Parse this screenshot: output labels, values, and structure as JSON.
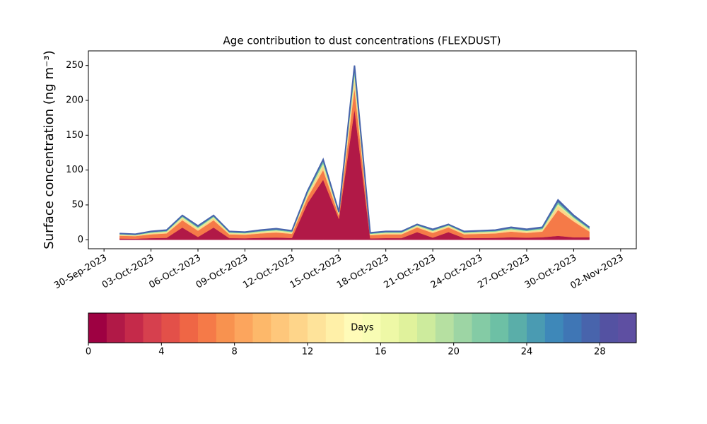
{
  "chart_data": [
    {
      "type": "stacked-area",
      "title": "Age contribution to dust concentrations (FLEXDUST)",
      "y_label": "Surface concentration (ng m⁻³)",
      "x": [
        "2023-10-01",
        "2023-10-02",
        "2023-10-03",
        "2023-10-04",
        "2023-10-05",
        "2023-10-06",
        "2023-10-07",
        "2023-10-08",
        "2023-10-09",
        "2023-10-10",
        "2023-10-11",
        "2023-10-12",
        "2023-10-13",
        "2023-10-14",
        "2023-10-15",
        "2023-10-16",
        "2023-10-17",
        "2023-10-18",
        "2023-10-19",
        "2023-10-20",
        "2023-10-21",
        "2023-10-22",
        "2023-10-23",
        "2023-10-24",
        "2023-10-25",
        "2023-10-26",
        "2023-10-27",
        "2023-10-28",
        "2023-10-29",
        "2023-10-30",
        "2023-10-31"
      ],
      "series": [
        {
          "color": "#b11947",
          "values": [
            1.8,
            1.6,
            2.4,
            2.8,
            17.5,
            4.0,
            17.5,
            2.4,
            2.2,
            2.8,
            3.2,
            2.6,
            52.5,
            86.3,
            30,
            187.5,
            2,
            2.4,
            2.4,
            11,
            3,
            11,
            2.4,
            2.6,
            2.8,
            3.6,
            3,
            3.6,
            5.7,
            3.5,
            3.6
          ]
        },
        {
          "color": "#f57a48",
          "values": [
            4.1,
            3.6,
            5.4,
            6.3,
            10.5,
            9.0,
            10.5,
            5.4,
            5.0,
            6.3,
            7.2,
            5.9,
            8.4,
            13.8,
            4.8,
            30,
            4.5,
            5.4,
            5.4,
            6.6,
            6.8,
            6.6,
            5.4,
            5.9,
            6.3,
            8.1,
            6.8,
            8.1,
            37.1,
            22.8,
            8.1
          ]
        },
        {
          "color": "#fed58a",
          "values": [
            1.1,
            1.0,
            1.4,
            1.7,
            2.8,
            2.4,
            2.8,
            1.4,
            1.3,
            1.7,
            1.9,
            1.6,
            3.5,
            5.8,
            2,
            12.5,
            1.2,
            1.4,
            1.4,
            1.8,
            1.8,
            1.8,
            1.4,
            1.6,
            1.7,
            2.2,
            1.8,
            2.2,
            5.7,
            3.5,
            2.2
          ]
        },
        {
          "color": "#e0f29c",
          "values": [
            0.7,
            0.6,
            1.0,
            1.1,
            1.8,
            1.6,
            1.8,
            1.0,
            0.9,
            1.1,
            1.3,
            1.0,
            2.1,
            3.5,
            1.2,
            7.5,
            0.8,
            1.0,
            1.0,
            1.1,
            1.2,
            1.1,
            1.0,
            1.0,
            1.1,
            1.4,
            1.2,
            1.4,
            2.9,
            1.8,
            1.4
          ]
        },
        {
          "color": "#6dc0a5",
          "values": [
            0.7,
            0.6,
            1.0,
            1.1,
            1.4,
            1.6,
            1.4,
            1.0,
            0.9,
            1.1,
            1.3,
            1.0,
            2.1,
            3.5,
            1.2,
            7.5,
            0.8,
            1.0,
            1.0,
            0.9,
            1.2,
            0.9,
            1.0,
            1.0,
            1.1,
            1.4,
            1.2,
            1.4,
            2.9,
            1.8,
            1.4
          ]
        },
        {
          "color": "#4864ac",
          "values": [
            0.6,
            0.6,
            0.8,
            1.0,
            1.0,
            1.4,
            1.0,
            0.8,
            0.7,
            1.0,
            1.1,
            0.9,
            1.4,
            2.3,
            0.8,
            5,
            0.7,
            0.8,
            0.8,
            0.7,
            1.1,
            0.7,
            0.8,
            0.9,
            1.0,
            1.3,
            1.1,
            1.3,
            2.9,
            1.8,
            1.3
          ]
        }
      ],
      "xlim": [
        "2023-09-29",
        "2023-11-03"
      ],
      "xticks": [
        {
          "value": "2023-09-30",
          "label": "30-Sep-2023"
        },
        {
          "value": "2023-10-03",
          "label": "03-Oct-2023"
        },
        {
          "value": "2023-10-06",
          "label": "06-Oct-2023"
        },
        {
          "value": "2023-10-09",
          "label": "09-Oct-2023"
        },
        {
          "value": "2023-10-12",
          "label": "12-Oct-2023"
        },
        {
          "value": "2023-10-15",
          "label": "15-Oct-2023"
        },
        {
          "value": "2023-10-18",
          "label": "18-Oct-2023"
        },
        {
          "value": "2023-10-21",
          "label": "21-Oct-2023"
        },
        {
          "value": "2023-10-24",
          "label": "24-Oct-2023"
        },
        {
          "value": "2023-10-27",
          "label": "27-Oct-2023"
        },
        {
          "value": "2023-10-30",
          "label": "30-Oct-2023"
        },
        {
          "value": "2023-11-02",
          "label": "02-Nov-2023"
        }
      ],
      "ylim": [
        -12.9,
        271
      ],
      "yticks": [
        0,
        50,
        100,
        150,
        200,
        250
      ],
      "grid": false
    },
    {
      "type": "colorbar",
      "label": "Days",
      "bins": [
        0,
        1,
        2,
        3,
        4,
        5,
        6,
        7,
        8,
        9,
        10,
        11,
        12,
        13,
        14,
        15,
        16,
        17,
        18,
        19,
        20,
        21,
        22,
        23,
        24,
        25,
        26,
        27,
        28,
        29,
        30
      ],
      "colors": [
        "#9e0142",
        "#b11947",
        "#c52a4a",
        "#d6404e",
        "#e35049",
        "#ef6645",
        "#f57a48",
        "#f8924f",
        "#fca55d",
        "#fdb86a",
        "#fec77b",
        "#fed58a",
        "#fee39a",
        "#fff0a8",
        "#fffbb8",
        "#f8fcb4",
        "#eef8a6",
        "#e0f29c",
        "#cdeb9d",
        "#b6e0a1",
        "#9dd5a4",
        "#84cba5",
        "#6dc0a5",
        "#5aaea9",
        "#4a9bb2",
        "#3e88b9",
        "#3f76b5",
        "#4864ac",
        "#5452a2",
        "#5e4fa2"
      ],
      "xlim": [
        0,
        30
      ],
      "xticks": [
        0,
        4,
        8,
        12,
        16,
        20,
        24,
        28
      ]
    }
  ]
}
